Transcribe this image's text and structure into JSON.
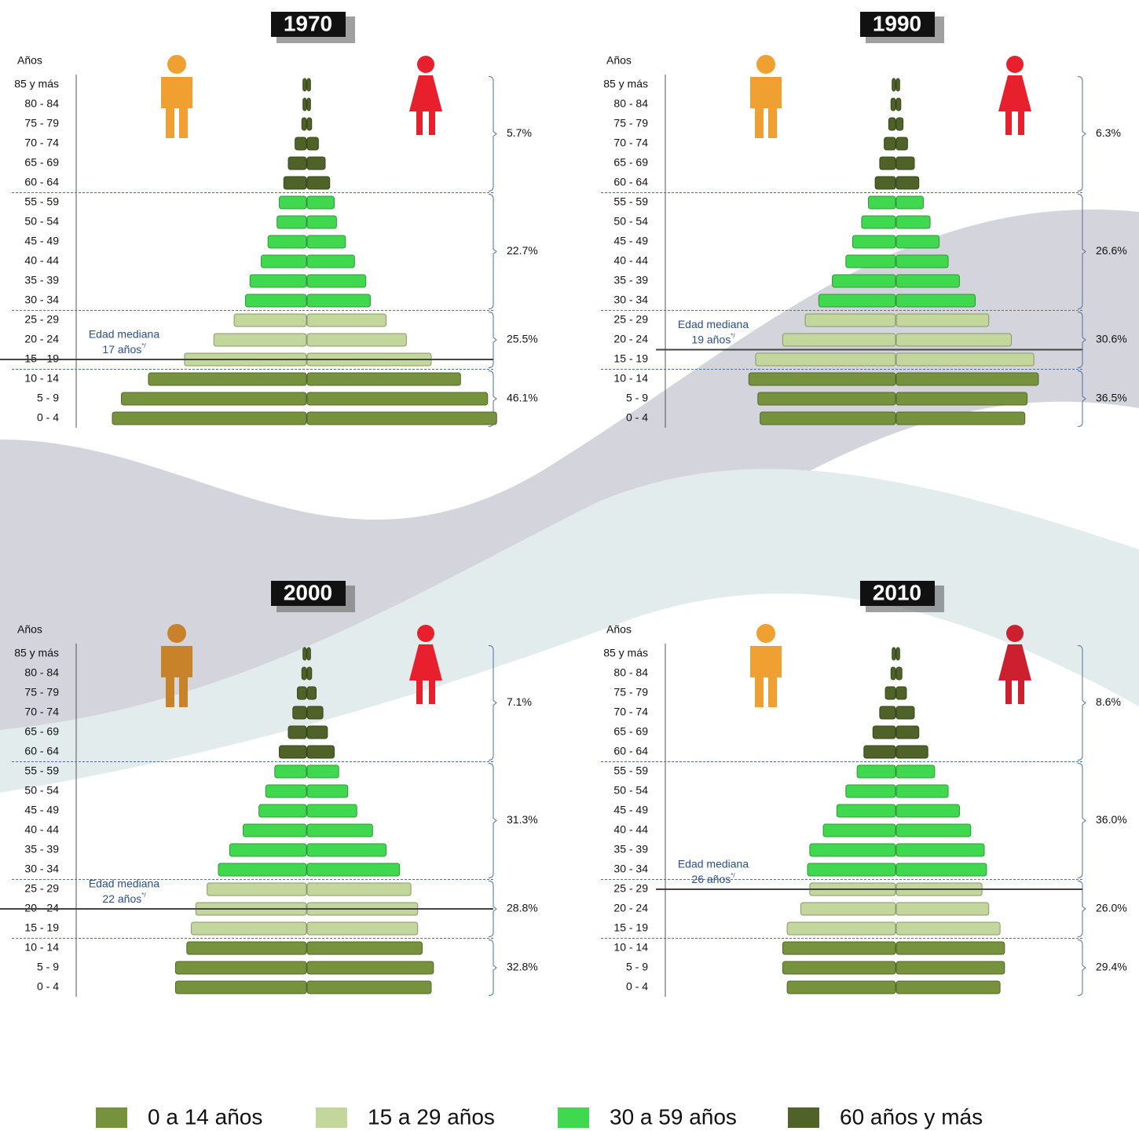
{
  "chart_data": [
    {
      "type": "pyramid",
      "title": "1970",
      "y_label": "Años",
      "categories": [
        "85 y más",
        "80 - 84",
        "75 - 79",
        "70 - 74",
        "65 - 69",
        "60 - 64",
        "55 - 59",
        "50 - 54",
        "45 - 49",
        "40 - 44",
        "35 - 39",
        "30 - 34",
        "25 - 29",
        "20 - 24",
        "15 - 19",
        "10 - 14",
        "5 - 9",
        "0 - 4"
      ],
      "series": [
        {
          "values": [
            0.15,
            0.15,
            0.2,
            0.5,
            0.8,
            1.0,
            1.2,
            1.3,
            1.7,
            2.0,
            2.5,
            2.7,
            3.2,
            4.1,
            5.4,
            7.0,
            8.2,
            8.6
          ]
        },
        {
          "values": [
            0.15,
            0.15,
            0.2,
            0.5,
            0.8,
            1.0,
            1.2,
            1.3,
            1.7,
            2.1,
            2.6,
            2.8,
            3.5,
            4.4,
            5.5,
            6.8,
            8.0,
            8.4
          ]
        }
      ],
      "group_labels": [
        "5.7%",
        "22.7%",
        "25.5%",
        "46.1%"
      ],
      "median_label": "Edad mediana",
      "median_value": "17 años",
      "median_note": "*/"
    },
    {
      "type": "pyramid",
      "title": "1990",
      "y_label": "Años",
      "categories": [
        "85 y más",
        "80 - 84",
        "75 - 79",
        "70 - 74",
        "65 - 69",
        "60 - 64",
        "55 - 59",
        "50 - 54",
        "45 - 49",
        "40 - 44",
        "35 - 39",
        "30 - 34",
        "25 - 29",
        "20 - 24",
        "15 - 19",
        "10 - 14",
        "5 - 9",
        "0 - 4"
      ],
      "series": [
        {
          "values": [
            0.15,
            0.2,
            0.3,
            0.5,
            0.7,
            0.9,
            1.2,
            1.5,
            1.9,
            2.2,
            2.8,
            3.4,
            4.0,
            5.0,
            6.2,
            6.5,
            6.1,
            6.0
          ]
        },
        {
          "values": [
            0.15,
            0.2,
            0.3,
            0.5,
            0.8,
            1.0,
            1.2,
            1.5,
            1.9,
            2.3,
            2.8,
            3.5,
            4.1,
            5.1,
            6.1,
            6.3,
            5.8,
            5.7
          ]
        }
      ],
      "group_labels": [
        "6.3%",
        "26.6%",
        "30.6%",
        "36.5%"
      ],
      "median_label": "Edad mediana",
      "median_value": "19 años",
      "median_note": "*/"
    },
    {
      "type": "pyramid",
      "title": "2000",
      "y_label": "Años",
      "categories": [
        "85 y más",
        "80 - 84",
        "75 - 79",
        "70 - 74",
        "65 - 69",
        "60 - 64",
        "55 - 59",
        "50 - 54",
        "45 - 49",
        "40 - 44",
        "35 - 39",
        "30 - 34",
        "25 - 29",
        "20 - 24",
        "15 - 19",
        "10 - 14",
        "5 - 9",
        "0 - 4"
      ],
      "series": [
        {
          "values": [
            0.15,
            0.2,
            0.4,
            0.6,
            0.8,
            1.2,
            1.4,
            1.8,
            2.1,
            2.8,
            3.4,
            3.9,
            4.4,
            4.9,
            5.1,
            5.3,
            5.8,
            5.8
          ]
        },
        {
          "values": [
            0.15,
            0.2,
            0.4,
            0.7,
            0.9,
            1.2,
            1.4,
            1.8,
            2.2,
            2.9,
            3.5,
            4.1,
            4.6,
            4.9,
            4.9,
            5.1,
            5.6,
            5.5
          ]
        }
      ],
      "group_labels": [
        "7.1%",
        "31.3%",
        "28.8%",
        "32.8%"
      ],
      "median_label": "Edad mediana",
      "median_value": "22 años",
      "median_note": "*/"
    },
    {
      "type": "pyramid",
      "title": "2010",
      "y_label": "Años",
      "categories": [
        "85 y más",
        "80 - 84",
        "75 - 79",
        "70 - 74",
        "65 - 69",
        "60 - 64",
        "55 - 59",
        "50 - 54",
        "45 - 49",
        "40 - 44",
        "35 - 39",
        "30 - 34",
        "25 - 29",
        "20 - 24",
        "15 - 19",
        "10 - 14",
        "5 - 9",
        "0 - 4"
      ],
      "series": [
        {
          "values": [
            0.15,
            0.2,
            0.45,
            0.7,
            1.0,
            1.4,
            1.7,
            2.2,
            2.6,
            3.2,
            3.8,
            3.9,
            3.8,
            4.2,
            4.8,
            5.0,
            5.0,
            4.8
          ]
        },
        {
          "values": [
            0.15,
            0.25,
            0.45,
            0.8,
            1.0,
            1.4,
            1.7,
            2.3,
            2.8,
            3.3,
            3.9,
            4.0,
            3.8,
            4.1,
            4.6,
            4.8,
            4.8,
            4.6
          ]
        }
      ],
      "group_labels": [
        "8.6%",
        "36.0%",
        "26.0%",
        "29.4%"
      ],
      "median_label": "Edad mediana",
      "median_value": "26 años",
      "median_note": "*/"
    }
  ],
  "legend": [
    {
      "name": "0 a 14 años",
      "color": "#76923c"
    },
    {
      "name": "15 a 29 años",
      "color": "#c3d69b"
    },
    {
      "name": "30 a 59 años",
      "color": "#3fd84f"
    },
    {
      "name": "60 años y más",
      "color": "#4f6228"
    }
  ]
}
